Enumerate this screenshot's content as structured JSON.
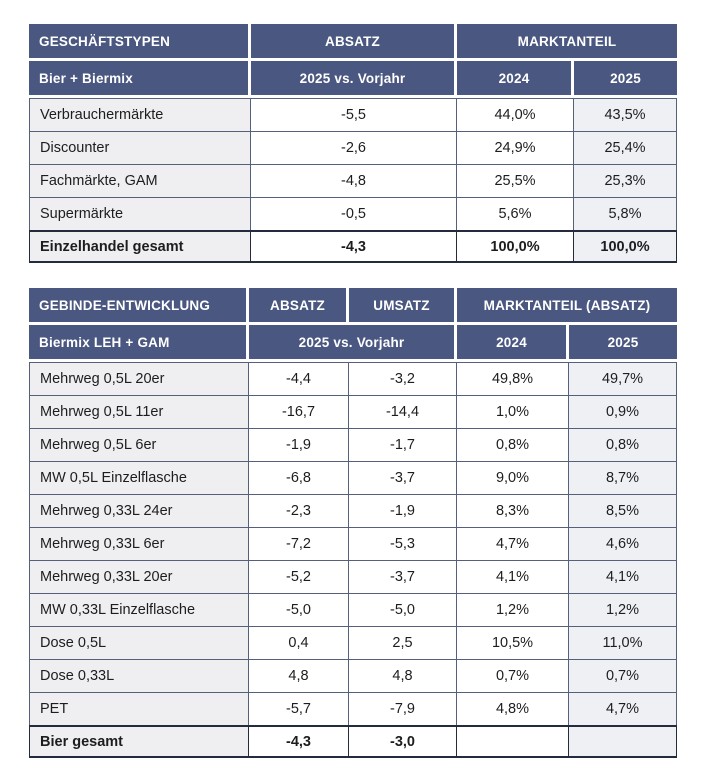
{
  "colors": {
    "header_bg": "#4a5781",
    "header_text": "#ffffff",
    "label_col_bg": "#efeff2",
    "shade_col_bg": "#eef0f3",
    "grid_border": "#55617c",
    "total_border": "#242b3d",
    "text": "#1d1d1f",
    "page_bg": "#ffffff"
  },
  "table1": {
    "header": {
      "title": "GESCHÄFTSTYPEN",
      "absatz": "ABSATZ",
      "marktanteil": "MARKTANTEIL"
    },
    "subheader": {
      "title": "Bier + Biermix",
      "vs_vorjahr": "2025 vs. Vorjahr",
      "y2024": "2024",
      "y2025": "2025"
    },
    "rows": [
      {
        "label": "Verbrauchermärkte",
        "absatz": "-5,5",
        "share2024": "44,0%",
        "share2025": "43,5%",
        "bold": false
      },
      {
        "label": "Discounter",
        "absatz": "-2,6",
        "share2024": "24,9%",
        "share2025": "25,4%",
        "bold": false
      },
      {
        "label": "Fachmärkte, GAM",
        "absatz": "-4,8",
        "share2024": "25,5%",
        "share2025": "25,3%",
        "bold": false
      },
      {
        "label": "Supermärkte",
        "absatz": "-0,5",
        "share2024": "5,6%",
        "share2025": "5,8%",
        "bold": false
      },
      {
        "label": "Einzelhandel gesamt",
        "absatz": "-4,3",
        "share2024": "100,0%",
        "share2025": "100,0%",
        "bold": true
      }
    ]
  },
  "table2": {
    "header": {
      "title": "GEBINDE-ENTWICKLUNG",
      "absatz": "ABSATZ",
      "umsatz": "UMSATZ",
      "marktanteil": "MARKTANTEIL (ABSATZ)"
    },
    "subheader": {
      "title": "Biermix LEH + GAM",
      "vs_vorjahr": "2025 vs. Vorjahr",
      "y2024": "2024",
      "y2025": "2025"
    },
    "rows": [
      {
        "label": "Mehrweg 0,5L 20er",
        "absatz": "-4,4",
        "umsatz": "-3,2",
        "share2024": "49,8%",
        "share2025": "49,7%",
        "bold": false
      },
      {
        "label": "Mehrweg 0,5L 11er",
        "absatz": "-16,7",
        "umsatz": "-14,4",
        "share2024": "1,0%",
        "share2025": "0,9%",
        "bold": false
      },
      {
        "label": "Mehrweg 0,5L 6er",
        "absatz": "-1,9",
        "umsatz": "-1,7",
        "share2024": "0,8%",
        "share2025": "0,8%",
        "bold": false
      },
      {
        "label": "MW 0,5L Einzelflasche",
        "absatz": "-6,8",
        "umsatz": "-3,7",
        "share2024": "9,0%",
        "share2025": "8,7%",
        "bold": false
      },
      {
        "label": "Mehrweg 0,33L 24er",
        "absatz": "-2,3",
        "umsatz": "-1,9",
        "share2024": "8,3%",
        "share2025": "8,5%",
        "bold": false
      },
      {
        "label": "Mehrweg 0,33L 6er",
        "absatz": "-7,2",
        "umsatz": "-5,3",
        "share2024": "4,7%",
        "share2025": "4,6%",
        "bold": false
      },
      {
        "label": "Mehrweg 0,33L 20er",
        "absatz": "-5,2",
        "umsatz": "-3,7",
        "share2024": "4,1%",
        "share2025": "4,1%",
        "bold": false
      },
      {
        "label": "MW 0,33L Einzelflasche",
        "absatz": "-5,0",
        "umsatz": "-5,0",
        "share2024": "1,2%",
        "share2025": "1,2%",
        "bold": false
      },
      {
        "label": "Dose 0,5L",
        "absatz": "0,4",
        "umsatz": "2,5",
        "share2024": "10,5%",
        "share2025": "11,0%",
        "bold": false
      },
      {
        "label": "Dose 0,33L",
        "absatz": "4,8",
        "umsatz": "4,8",
        "share2024": "0,7%",
        "share2025": "0,7%",
        "bold": false
      },
      {
        "label": "PET",
        "absatz": "-5,7",
        "umsatz": "-7,9",
        "share2024": "4,8%",
        "share2025": "4,7%",
        "bold": false
      },
      {
        "label": "Bier gesamt",
        "absatz": "-4,3",
        "umsatz": "-3,0",
        "share2024": "",
        "share2025": "",
        "bold": true
      }
    ]
  }
}
